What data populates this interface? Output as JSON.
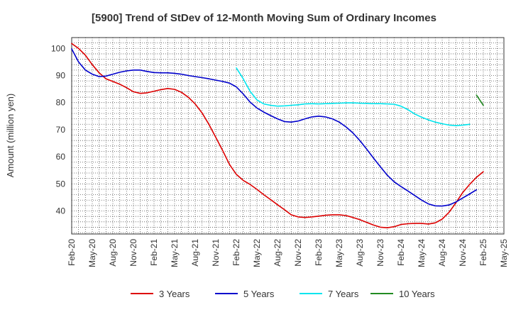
{
  "chart_data": {
    "type": "line",
    "title": "[5900]  Trend of StDev of 12-Month Moving Sum of Ordinary Incomes",
    "xlabel": "",
    "ylabel": "Amount (million yen)",
    "ylim": [
      31.5,
      104
    ],
    "yticks": [
      40,
      50,
      60,
      70,
      80,
      90,
      100
    ],
    "x_start": "Feb-20",
    "months_total": 63,
    "xtick_labels": [
      "Feb-20",
      "May-20",
      "Aug-20",
      "Nov-20",
      "Feb-21",
      "May-21",
      "Aug-21",
      "Nov-21",
      "Feb-22",
      "May-22",
      "Aug-22",
      "Nov-22",
      "Feb-23",
      "May-23",
      "Aug-23",
      "Nov-23",
      "Feb-24",
      "May-24",
      "Aug-24",
      "Nov-24",
      "Feb-25",
      "May-25"
    ],
    "series": [
      {
        "name": "3 Years",
        "color": "#dd0000",
        "start_index": 0,
        "values": [
          101.8,
          100.0,
          97.5,
          94.0,
          91.0,
          88.8,
          87.8,
          86.8,
          85.5,
          84.0,
          83.4,
          83.6,
          84.2,
          84.8,
          85.2,
          84.9,
          83.8,
          82.0,
          79.5,
          76.2,
          72.0,
          67.2,
          62.3,
          57.2,
          53.5,
          51.3,
          49.8,
          48.0,
          46.0,
          44.2,
          42.3,
          40.5,
          38.6,
          37.8,
          37.6,
          37.8,
          38.1,
          38.4,
          38.6,
          38.6,
          38.3,
          37.6,
          36.8,
          35.8,
          34.8,
          34.0,
          33.8,
          34.2,
          35.0,
          35.3,
          35.4,
          35.4,
          35.2,
          35.6,
          37.0,
          39.5,
          43.0,
          46.8,
          49.8,
          52.4,
          54.5
        ]
      },
      {
        "name": "5 Years",
        "color": "#0000cc",
        "start_index": 0,
        "values": [
          99.8,
          95.0,
          92.0,
          90.5,
          89.6,
          89.8,
          90.5,
          91.2,
          91.7,
          92.0,
          92.0,
          91.5,
          91.1,
          91.0,
          91.0,
          90.8,
          90.5,
          90.0,
          89.6,
          89.2,
          88.8,
          88.3,
          87.8,
          87.2,
          85.8,
          83.2,
          80.2,
          78.0,
          76.5,
          75.2,
          74.0,
          73.0,
          72.8,
          73.2,
          74.0,
          74.7,
          75.0,
          74.7,
          74.0,
          72.8,
          71.0,
          68.8,
          66.0,
          62.8,
          59.5,
          56.3,
          53.2,
          50.8,
          49.0,
          47.4,
          45.7,
          44.0,
          42.6,
          41.9,
          41.8,
          42.2,
          43.3,
          44.8,
          46.3,
          47.8
        ]
      },
      {
        "name": "7 Years",
        "color": "#00e5ee",
        "start_index": 24,
        "values": [
          92.8,
          88.8,
          84.2,
          81.0,
          79.5,
          79.0,
          78.7,
          78.8,
          79.0,
          79.2,
          79.5,
          79.6,
          79.5,
          79.6,
          79.7,
          79.8,
          79.9,
          79.9,
          79.8,
          79.7,
          79.6,
          79.6,
          79.5,
          79.4,
          78.7,
          77.4,
          75.8,
          74.6,
          73.6,
          72.8,
          72.2,
          71.7,
          71.5,
          71.7,
          72.0
        ]
      },
      {
        "name": "10 Years",
        "color": "#228b22",
        "start_index": 59,
        "values": [
          82.8,
          79.0
        ]
      }
    ]
  }
}
